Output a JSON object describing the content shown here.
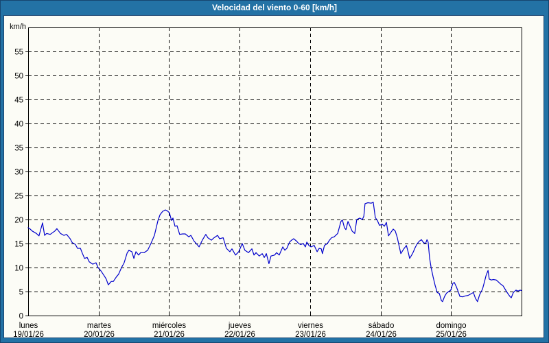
{
  "header": {
    "title": "Velocidad del viento 0-60 [km/h]"
  },
  "colors": {
    "titlebar_bg": "#2372a5",
    "border_line": "#1a4470",
    "panel_bg": "#fcfcf6",
    "grid": "#000000",
    "axis_text": "#000000",
    "line": "#0000cc"
  },
  "chart_data": {
    "type": "line",
    "title": "Velocidad del viento 0-60 [km/h]",
    "ylabel": "km/h",
    "xlabel": "",
    "ylim": [
      0,
      60
    ],
    "yticks": [
      0,
      5,
      10,
      15,
      20,
      25,
      30,
      35,
      40,
      45,
      50,
      55
    ],
    "x_unit": "hours_since_monday_00h",
    "xlim": [
      0,
      168
    ],
    "grid": "dashed",
    "legend_position": "none",
    "categories": [
      {
        "day": "lunes",
        "date": "19/01/26"
      },
      {
        "day": "martes",
        "date": "20/01/26"
      },
      {
        "day": "miércoles",
        "date": "21/01/26"
      },
      {
        "day": "jueves",
        "date": "22/01/26"
      },
      {
        "day": "viernes",
        "date": "23/01/26"
      },
      {
        "day": "sábado",
        "date": "24/01/26"
      },
      {
        "day": "domingo",
        "date": "25/01/26"
      }
    ],
    "series": [
      {
        "name": "Velocidad del viento",
        "color": "#0000cc",
        "points": [
          [
            0.0,
            18.3
          ],
          [
            0.7,
            18.0
          ],
          [
            1.4,
            17.6
          ],
          [
            2.8,
            17.1
          ],
          [
            3.7,
            16.6
          ],
          [
            4.9,
            19.3
          ],
          [
            5.6,
            16.7
          ],
          [
            6.3,
            17.1
          ],
          [
            7.5,
            16.9
          ],
          [
            9.1,
            17.6
          ],
          [
            9.8,
            18.1
          ],
          [
            11.0,
            17.1
          ],
          [
            12.2,
            16.7
          ],
          [
            13.1,
            16.9
          ],
          [
            14.3,
            16.0
          ],
          [
            15.0,
            15.2
          ],
          [
            16.1,
            14.8
          ],
          [
            16.8,
            14.0
          ],
          [
            17.8,
            14.0
          ],
          [
            18.5,
            12.9
          ],
          [
            19.2,
            11.9
          ],
          [
            20.1,
            12.1
          ],
          [
            20.8,
            11.2
          ],
          [
            22.0,
            10.7
          ],
          [
            23.1,
            11.0
          ],
          [
            23.8,
            10.0
          ],
          [
            24.8,
            9.3
          ],
          [
            25.9,
            8.3
          ],
          [
            26.6,
            7.6
          ],
          [
            27.3,
            6.4
          ],
          [
            28.3,
            7.1
          ],
          [
            29.0,
            7.1
          ],
          [
            30.1,
            8.1
          ],
          [
            30.8,
            8.6
          ],
          [
            31.8,
            10.0
          ],
          [
            32.7,
            11.0
          ],
          [
            33.7,
            13.0
          ],
          [
            34.3,
            13.6
          ],
          [
            35.3,
            13.3
          ],
          [
            36.0,
            11.9
          ],
          [
            36.7,
            13.3
          ],
          [
            37.6,
            12.6
          ],
          [
            38.3,
            13.1
          ],
          [
            39.5,
            13.1
          ],
          [
            40.7,
            13.6
          ],
          [
            41.8,
            15.0
          ],
          [
            43.0,
            16.7
          ],
          [
            44.2,
            19.8
          ],
          [
            44.9,
            21.0
          ],
          [
            45.8,
            21.7
          ],
          [
            46.7,
            22.0
          ],
          [
            47.4,
            21.8
          ],
          [
            48.1,
            21.4
          ],
          [
            48.8,
            19.8
          ],
          [
            49.3,
            20.3
          ],
          [
            50.0,
            18.6
          ],
          [
            50.7,
            18.7
          ],
          [
            51.6,
            16.9
          ],
          [
            52.6,
            17.0
          ],
          [
            53.5,
            17.0
          ],
          [
            54.7,
            16.4
          ],
          [
            55.4,
            16.7
          ],
          [
            56.5,
            15.5
          ],
          [
            57.5,
            14.8
          ],
          [
            58.2,
            14.3
          ],
          [
            59.3,
            15.7
          ],
          [
            60.5,
            16.9
          ],
          [
            61.2,
            16.2
          ],
          [
            62.4,
            15.7
          ],
          [
            63.3,
            16.2
          ],
          [
            64.5,
            16.7
          ],
          [
            65.2,
            16.0
          ],
          [
            66.4,
            16.2
          ],
          [
            67.5,
            14.0
          ],
          [
            68.7,
            13.3
          ],
          [
            69.4,
            13.9
          ],
          [
            70.6,
            12.6
          ],
          [
            71.7,
            13.3
          ],
          [
            72.9,
            15.0
          ],
          [
            73.8,
            13.6
          ],
          [
            75.0,
            13.1
          ],
          [
            76.2,
            13.9
          ],
          [
            76.9,
            12.6
          ],
          [
            77.6,
            13.1
          ],
          [
            78.7,
            12.4
          ],
          [
            79.7,
            12.9
          ],
          [
            80.4,
            12.1
          ],
          [
            81.1,
            12.9
          ],
          [
            82.0,
            10.8
          ],
          [
            82.7,
            12.4
          ],
          [
            83.9,
            12.6
          ],
          [
            84.6,
            13.1
          ],
          [
            85.5,
            12.6
          ],
          [
            86.7,
            14.3
          ],
          [
            87.4,
            13.6
          ],
          [
            88.1,
            14.0
          ],
          [
            89.0,
            15.3
          ],
          [
            89.7,
            15.7
          ],
          [
            90.4,
            16.0
          ],
          [
            91.4,
            15.5
          ],
          [
            92.1,
            15.0
          ],
          [
            92.8,
            14.8
          ],
          [
            93.7,
            15.0
          ],
          [
            94.4,
            14.3
          ],
          [
            94.9,
            15.3
          ],
          [
            95.6,
            14.6
          ],
          [
            96.3,
            14.3
          ],
          [
            97.4,
            14.6
          ],
          [
            98.4,
            13.3
          ],
          [
            99.1,
            14.0
          ],
          [
            99.8,
            13.9
          ],
          [
            100.2,
            12.9
          ],
          [
            100.9,
            14.6
          ],
          [
            101.9,
            15.0
          ],
          [
            102.6,
            15.7
          ],
          [
            103.3,
            16.2
          ],
          [
            104.2,
            16.4
          ],
          [
            105.4,
            17.1
          ],
          [
            106.5,
            19.6
          ],
          [
            107.0,
            19.9
          ],
          [
            107.7,
            18.3
          ],
          [
            108.2,
            17.9
          ],
          [
            108.9,
            19.6
          ],
          [
            109.6,
            18.6
          ],
          [
            110.3,
            17.6
          ],
          [
            111.2,
            17.1
          ],
          [
            111.9,
            20.0
          ],
          [
            112.9,
            20.3
          ],
          [
            113.8,
            20.0
          ],
          [
            114.3,
            20.7
          ],
          [
            114.7,
            23.3
          ],
          [
            115.7,
            23.5
          ],
          [
            116.8,
            23.4
          ],
          [
            117.5,
            23.6
          ],
          [
            118.2,
            20.4
          ],
          [
            118.9,
            19.8
          ],
          [
            119.6,
            18.8
          ],
          [
            120.6,
            19.0
          ],
          [
            121.3,
            18.6
          ],
          [
            122.0,
            19.4
          ],
          [
            122.7,
            16.6
          ],
          [
            123.6,
            17.4
          ],
          [
            124.3,
            18.0
          ],
          [
            125.0,
            17.6
          ],
          [
            125.7,
            16.2
          ],
          [
            126.2,
            14.8
          ],
          [
            126.9,
            12.9
          ],
          [
            127.8,
            13.8
          ],
          [
            128.8,
            14.6
          ],
          [
            129.5,
            13.0
          ],
          [
            129.9,
            11.9
          ],
          [
            130.6,
            12.6
          ],
          [
            131.1,
            13.2
          ],
          [
            131.8,
            14.2
          ],
          [
            132.5,
            15.0
          ],
          [
            133.2,
            15.5
          ],
          [
            133.9,
            15.8
          ],
          [
            134.6,
            15.2
          ],
          [
            135.3,
            15.0
          ],
          [
            135.8,
            15.8
          ],
          [
            136.2,
            15.3
          ],
          [
            136.7,
            12.0
          ],
          [
            137.2,
            10.0
          ],
          [
            137.9,
            8.0
          ],
          [
            138.6,
            6.2
          ],
          [
            139.3,
            4.8
          ],
          [
            140.0,
            4.6
          ],
          [
            140.7,
            3.1
          ],
          [
            141.1,
            2.9
          ],
          [
            141.8,
            4.0
          ],
          [
            142.5,
            4.7
          ],
          [
            143.2,
            5.0
          ],
          [
            143.9,
            5.3
          ],
          [
            144.6,
            6.7
          ],
          [
            145.1,
            6.9
          ],
          [
            145.8,
            6.0
          ],
          [
            146.3,
            5.2
          ],
          [
            147.0,
            4.0
          ],
          [
            147.9,
            3.9
          ],
          [
            148.9,
            4.1
          ],
          [
            149.8,
            4.2
          ],
          [
            150.7,
            4.5
          ],
          [
            151.6,
            4.8
          ],
          [
            152.3,
            3.6
          ],
          [
            153.0,
            2.9
          ],
          [
            153.7,
            4.3
          ],
          [
            154.7,
            5.5
          ],
          [
            155.4,
            7.1
          ],
          [
            155.9,
            8.3
          ],
          [
            156.6,
            9.4
          ],
          [
            157.0,
            7.6
          ],
          [
            157.7,
            7.4
          ],
          [
            158.4,
            7.5
          ],
          [
            159.4,
            7.4
          ],
          [
            160.3,
            6.9
          ],
          [
            160.8,
            6.6
          ],
          [
            161.7,
            6.2
          ],
          [
            162.4,
            5.5
          ],
          [
            163.1,
            4.8
          ],
          [
            164.0,
            4.0
          ],
          [
            164.5,
            3.7
          ],
          [
            165.2,
            4.8
          ],
          [
            166.1,
            5.3
          ],
          [
            166.8,
            5.1
          ],
          [
            167.5,
            5.3
          ],
          [
            168.0,
            5.2
          ]
        ]
      }
    ]
  }
}
